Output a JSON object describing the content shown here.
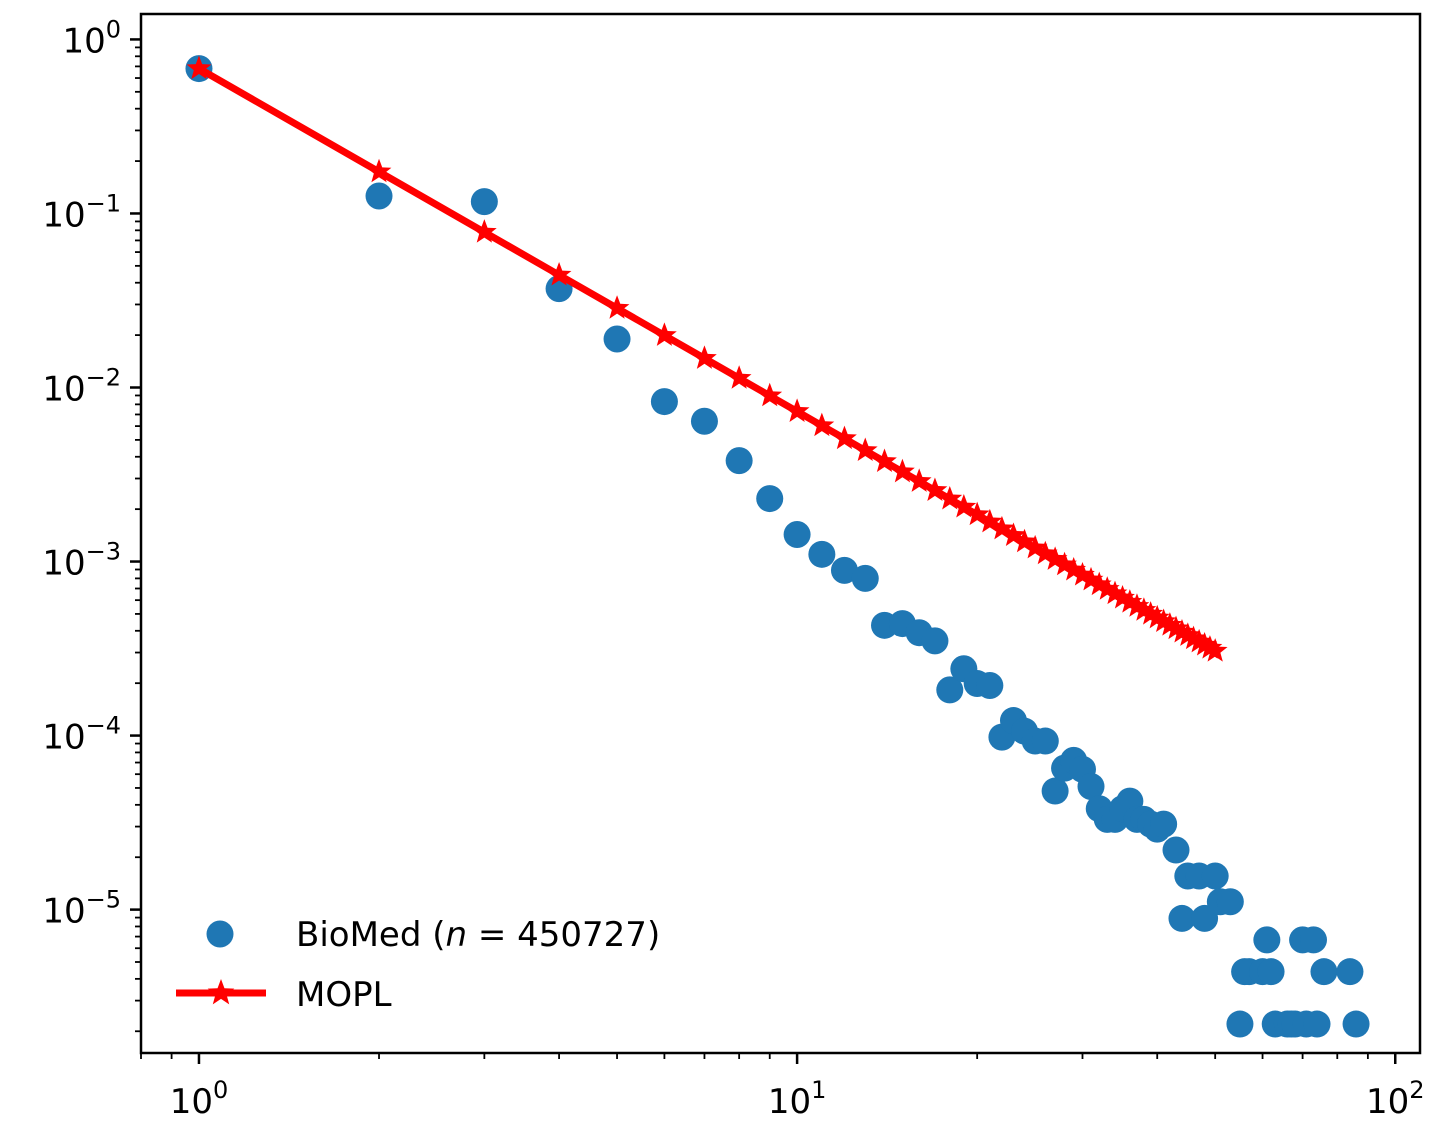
{
  "chart_data": {
    "type": "scatter",
    "x_scale": "log",
    "y_scale": "log",
    "xlim": [
      0.8,
      110
    ],
    "ylim": [
      1.5e-06,
      1.4
    ],
    "x_ticks": [
      {
        "value": 1,
        "base": "10",
        "exp": "0"
      },
      {
        "value": 10,
        "base": "10",
        "exp": "1"
      },
      {
        "value": 100,
        "base": "10",
        "exp": "2"
      }
    ],
    "y_ticks": [
      {
        "value": 1,
        "base": "10",
        "exp": "0"
      },
      {
        "value": 0.1,
        "base": "10",
        "exp": "−1"
      },
      {
        "value": 0.01,
        "base": "10",
        "exp": "−2"
      },
      {
        "value": 0.001,
        "base": "10",
        "exp": "−3"
      },
      {
        "value": 0.0001,
        "base": "10",
        "exp": "−4"
      },
      {
        "value": 1e-05,
        "base": "10",
        "exp": "−5"
      }
    ],
    "grid": false,
    "legend_position": "lower-left",
    "series": [
      {
        "name": "BioMed (n = 450727)",
        "label_prefix": "BioMed (",
        "label_var": "n",
        "label_suffix": " = 450727)",
        "kind": "scatter",
        "color": "#1f77b4",
        "points": [
          [
            1,
            0.68
          ],
          [
            2,
            0.126
          ],
          [
            3,
            0.117
          ],
          [
            4,
            0.037
          ],
          [
            5,
            0.019
          ],
          [
            6,
            0.0083
          ],
          [
            7,
            0.0064
          ],
          [
            8,
            0.0038
          ],
          [
            9,
            0.0023
          ],
          [
            10,
            0.00143
          ],
          [
            11,
            0.0011
          ],
          [
            12,
            0.00089
          ],
          [
            13,
            0.0008
          ],
          [
            14,
            0.00043
          ],
          [
            15,
            0.00044
          ],
          [
            16,
            0.00039
          ],
          [
            17,
            0.00035
          ],
          [
            18,
            0.000183
          ],
          [
            19,
            0.000242
          ],
          [
            20,
            0.000199
          ],
          [
            21,
            0.000194
          ],
          [
            22,
            9.8e-05
          ],
          [
            23,
            0.000122
          ],
          [
            24,
            0.000106
          ],
          [
            25,
            9.3e-05
          ],
          [
            26,
            9.3e-05
          ],
          [
            27,
            4.8e-05
          ],
          [
            28,
            6.5e-05
          ],
          [
            29,
            7.2e-05
          ],
          [
            30,
            6.4e-05
          ],
          [
            31,
            5.1e-05
          ],
          [
            32,
            3.8e-05
          ],
          [
            33,
            3.3e-05
          ],
          [
            34,
            3.3e-05
          ],
          [
            35,
            3.8e-05
          ],
          [
            36,
            4.2e-05
          ],
          [
            37,
            3.3e-05
          ],
          [
            38,
            3.3e-05
          ],
          [
            39,
            3.1e-05
          ],
          [
            40,
            2.9e-05
          ],
          [
            41,
            3.1e-05
          ],
          [
            43,
            2.2e-05
          ],
          [
            44,
            8.9e-06
          ],
          [
            45,
            1.56e-05
          ],
          [
            47,
            1.56e-05
          ],
          [
            48,
            8.9e-06
          ],
          [
            50,
            1.56e-05
          ],
          [
            51,
            1.11e-05
          ],
          [
            53,
            1.11e-05
          ],
          [
            55,
            2.2e-06
          ],
          [
            56,
            4.4e-06
          ],
          [
            57,
            4.4e-06
          ],
          [
            60,
            4.4e-06
          ],
          [
            61,
            6.7e-06
          ],
          [
            62,
            4.4e-06
          ],
          [
            63,
            2.2e-06
          ],
          [
            66,
            2.2e-06
          ],
          [
            67,
            2.2e-06
          ],
          [
            68,
            2.2e-06
          ],
          [
            70,
            6.7e-06
          ],
          [
            71,
            2.2e-06
          ],
          [
            73,
            6.7e-06
          ],
          [
            74,
            2.2e-06
          ],
          [
            76,
            4.4e-06
          ],
          [
            84,
            4.4e-06
          ],
          [
            86,
            2.2e-06
          ]
        ]
      },
      {
        "name": "MOPL",
        "kind": "line",
        "color": "#ff0000",
        "marker": "star",
        "x_range": [
          1,
          50
        ],
        "y_first": 0.68,
        "exponent": 1.97
      }
    ]
  }
}
